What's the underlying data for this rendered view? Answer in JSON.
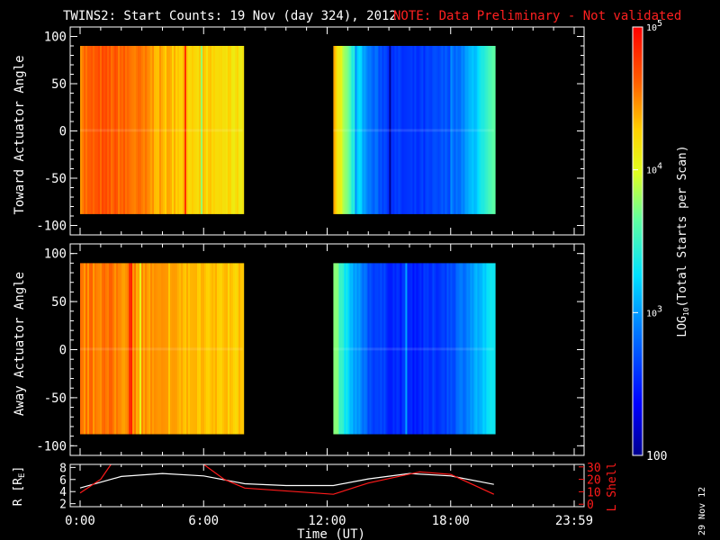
{
  "header": {
    "title": "TWINS2: Start Counts: 19 Nov (day 324), 2012",
    "note": "NOTE: Data Preliminary - Not validated",
    "note_color": "#ff2020"
  },
  "side_date": "29 Nov 12",
  "colors": {
    "background": "#000000",
    "axis": "#ffffff",
    "lshell": "#ff1a1a",
    "radius": "#ffffff"
  },
  "chart_data": [
    {
      "type": "heatmap",
      "ylabel": "Toward Actuator Angle",
      "ylim": [
        -110,
        110
      ],
      "yticks": [
        100,
        50,
        0,
        -50,
        -100
      ],
      "xlim": [
        0,
        24
      ],
      "data_extent_y": [
        -88,
        90
      ],
      "blocks": [
        {
          "x_start": 0.0,
          "x_end": 7.9,
          "log_counts_profile": [
            {
              "x": 0.0,
              "v": 4.55
            },
            {
              "x": 1.0,
              "v": 4.65
            },
            {
              "x": 2.0,
              "v": 4.6
            },
            {
              "x": 3.0,
              "v": 4.5
            },
            {
              "x": 4.0,
              "v": 4.35
            },
            {
              "x": 5.0,
              "v": 4.3
            },
            {
              "x": 6.0,
              "v": 4.25
            },
            {
              "x": 7.0,
              "v": 4.2
            },
            {
              "x": 7.9,
              "v": 4.15
            }
          ]
        },
        {
          "x_start": 12.3,
          "x_end": 20.1,
          "log_counts_profile": [
            {
              "x": 12.3,
              "v": 4.4
            },
            {
              "x": 13.0,
              "v": 3.6
            },
            {
              "x": 14.0,
              "v": 2.85
            },
            {
              "x": 15.0,
              "v": 2.6
            },
            {
              "x": 16.0,
              "v": 2.55
            },
            {
              "x": 17.0,
              "v": 2.6
            },
            {
              "x": 18.0,
              "v": 2.75
            },
            {
              "x": 19.0,
              "v": 3.1
            },
            {
              "x": 20.1,
              "v": 3.6
            }
          ]
        }
      ]
    },
    {
      "type": "heatmap",
      "ylabel": "Away Actuator Angle",
      "ylim": [
        -110,
        110
      ],
      "yticks": [
        100,
        50,
        0,
        -50,
        -100
      ],
      "xlim": [
        0,
        24
      ],
      "data_extent_y": [
        -88,
        90
      ],
      "blocks": [
        {
          "x_start": 0.0,
          "x_end": 7.9,
          "log_counts_profile": [
            {
              "x": 0.0,
              "v": 4.5
            },
            {
              "x": 1.0,
              "v": 4.55
            },
            {
              "x": 2.0,
              "v": 4.5
            },
            {
              "x": 3.0,
              "v": 4.45
            },
            {
              "x": 4.0,
              "v": 4.4
            },
            {
              "x": 5.0,
              "v": 4.35
            },
            {
              "x": 6.0,
              "v": 4.35
            },
            {
              "x": 7.0,
              "v": 4.3
            },
            {
              "x": 7.9,
              "v": 4.3
            }
          ]
        },
        {
          "x_start": 12.3,
          "x_end": 20.1,
          "log_counts_profile": [
            {
              "x": 12.3,
              "v": 3.8
            },
            {
              "x": 13.0,
              "v": 3.2
            },
            {
              "x": 14.0,
              "v": 2.7
            },
            {
              "x": 15.0,
              "v": 2.55
            },
            {
              "x": 16.0,
              "v": 2.5
            },
            {
              "x": 17.0,
              "v": 2.55
            },
            {
              "x": 18.0,
              "v": 2.7
            },
            {
              "x": 19.0,
              "v": 3.0
            },
            {
              "x": 20.1,
              "v": 3.3
            }
          ]
        }
      ]
    },
    {
      "type": "line",
      "xlabel": "Time (UT)",
      "xticks": [
        "0:00",
        "6:00",
        "12:00",
        "18:00",
        "23:59"
      ],
      "xtick_values": [
        0,
        6,
        12,
        18,
        24
      ],
      "y_left_label": "R [R",
      "y_left_subscript": "E",
      "y_left_close": "]",
      "y_left_ticks": [
        8,
        6,
        4,
        2
      ],
      "y_left_lim": [
        1.5,
        8.5
      ],
      "y_right_label": "L Shell",
      "y_right_ticks": [
        30,
        20,
        10,
        0
      ],
      "y_right_lim": [
        -2,
        32
      ],
      "series": [
        {
          "name": "R",
          "axis": "left",
          "color": "#ffffff",
          "x": [
            0,
            2,
            4,
            6,
            8,
            10,
            12.3,
            14,
            16,
            18,
            20.1
          ],
          "y": [
            4.6,
            6.5,
            7.0,
            6.6,
            5.3,
            5.0,
            5.0,
            6.1,
            7.0,
            6.6,
            5.2
          ]
        },
        {
          "name": "L Shell",
          "axis": "right",
          "color": "#ff1a1a",
          "x": [
            0,
            1.0,
            1.5,
            2.0,
            6.0,
            7.0,
            8.0,
            12.3,
            14,
            16.5,
            18,
            20.1
          ],
          "y": [
            9,
            20,
            32,
            null,
            32,
            20,
            13,
            8,
            17,
            26,
            24,
            8
          ]
        }
      ]
    }
  ],
  "colorbar": {
    "label_prefix": "LOG",
    "label_subscript": "10",
    "label_suffix": "(Total Starts per Scan)",
    "ticks": [
      {
        "value": 5,
        "base": "10",
        "exp": "5"
      },
      {
        "value": 4,
        "base": "10",
        "exp": "4"
      },
      {
        "value": 3,
        "base": "10",
        "exp": "3"
      },
      {
        "value": 2,
        "base": "100",
        "exp": ""
      }
    ],
    "range": [
      2,
      5
    ]
  }
}
